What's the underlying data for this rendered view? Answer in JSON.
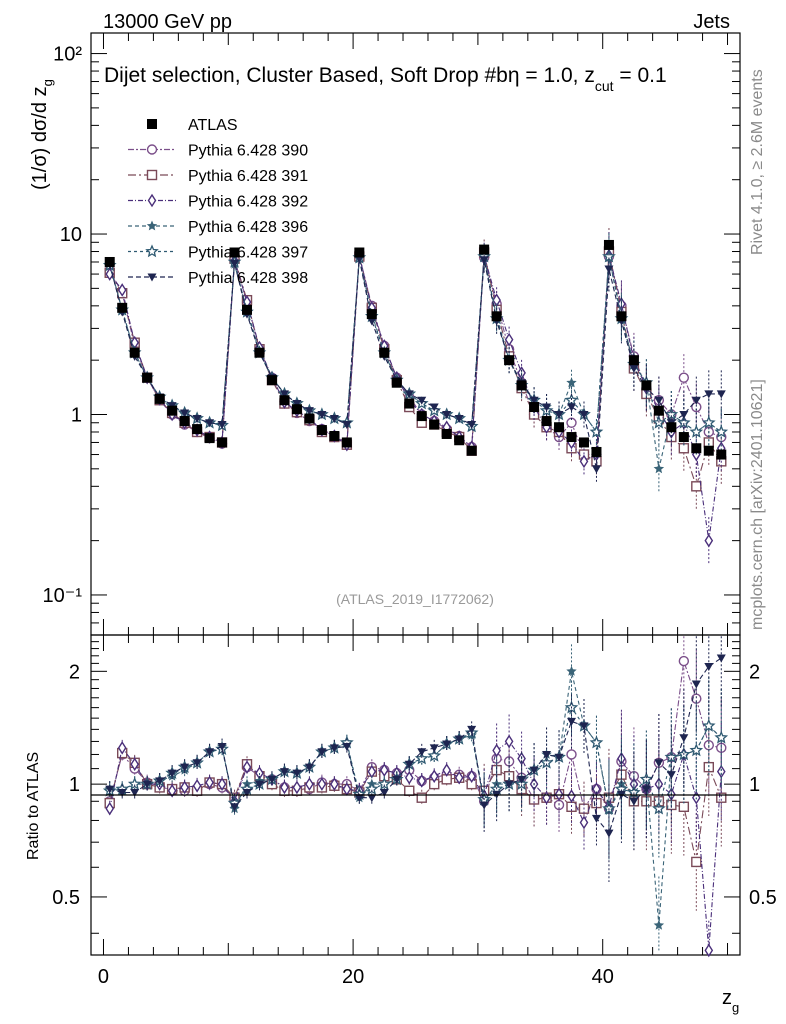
{
  "header": {
    "energy": "13000 GeV pp",
    "process": "Jets",
    "rivet_side": "Rivet 4.1.0, ≥ 2.6M events",
    "mcplots_side": "mcplots.cern.ch [arXiv:2401.10621]",
    "analysis_id": "(ATLAS_2019_I1772062)"
  },
  "chart_data": {
    "type": "scatter",
    "title": "Dijet selection, Cluster Based, Soft Drop #bη = 1.0, z",
    "title_sub": "cut",
    "title_tail": " = 0.1",
    "xlabel_main": "z",
    "xlabel_sub": "g",
    "ylabel": "(1/σ) dσ/d z",
    "ylabel_sub": "g",
    "ratio_ylabel": "Ratio to ATLAS",
    "xlim": [
      -1,
      51
    ],
    "ylim": [
      0.06,
      130
    ],
    "ratio_ylim": [
      0.35,
      2.5
    ],
    "x_ticks": [
      "0",
      "20",
      "40"
    ],
    "y_ticks": [
      "10⁻¹",
      "1",
      "10",
      "10²"
    ],
    "ratio_ticks": [
      "0.5",
      "1",
      "2"
    ],
    "x": [
      0.5,
      1.5,
      2.5,
      3.5,
      4.5,
      5.5,
      6.5,
      7.5,
      8.5,
      9.5,
      10.5,
      11.5,
      12.5,
      13.5,
      14.5,
      15.5,
      16.5,
      17.5,
      18.5,
      19.5,
      20.5,
      21.5,
      22.5,
      23.5,
      24.5,
      25.5,
      26.5,
      27.5,
      28.5,
      29.5,
      30.5,
      31.5,
      32.5,
      33.5,
      34.5,
      35.5,
      36.5,
      37.5,
      38.5,
      39.5,
      40.5,
      41.5,
      42.5,
      43.5,
      44.5,
      45.5,
      46.5,
      47.5,
      48.5,
      49.5
    ],
    "series": [
      {
        "name": "ATLAS",
        "marker": "square-filled",
        "color": "#000000",
        "dash": "",
        "values": [
          7.0,
          3.9,
          2.2,
          1.6,
          1.22,
          1.05,
          0.92,
          0.83,
          0.74,
          0.7,
          7.9,
          3.8,
          2.2,
          1.55,
          1.2,
          1.07,
          0.95,
          0.82,
          0.76,
          0.7,
          7.9,
          3.6,
          2.2,
          1.5,
          1.15,
          0.98,
          0.88,
          0.78,
          0.72,
          0.63,
          8.2,
          3.5,
          2.0,
          1.45,
          1.1,
          0.92,
          0.85,
          0.75,
          0.7,
          0.62,
          8.7,
          3.5,
          2.0,
          1.45,
          1.05,
          0.85,
          0.75,
          0.65,
          0.63,
          0.6
        ],
        "ratio": []
      },
      {
        "name": "Pythia 6.428 390",
        "marker": "circle-open",
        "color": "#7b4f8a",
        "dash": "6,2,2,2",
        "values": [
          6.3,
          4.7,
          2.4,
          1.6,
          1.2,
          1.0,
          0.88,
          0.8,
          0.74,
          0.69,
          7.2,
          4.2,
          2.3,
          1.6,
          1.18,
          1.02,
          0.92,
          0.83,
          0.76,
          0.7,
          7.6,
          4.0,
          2.4,
          1.6,
          1.25,
          1.0,
          0.92,
          0.83,
          0.76,
          0.66,
          7.4,
          4.1,
          2.3,
          1.5,
          1.0,
          0.85,
          0.75,
          0.9,
          0.6,
          0.6,
          7.5,
          4.0,
          2.1,
          1.4,
          1.2,
          1.0,
          1.6,
          1.1,
          0.8,
          0.75
        ],
        "ratio": [
          0.9,
          1.2,
          1.1,
          1.01,
          0.99,
          0.96,
          0.96,
          0.97,
          1.0,
          0.98,
          0.92,
          1.11,
          1.05,
          1.03,
          0.98,
          0.96,
          0.97,
          1.01,
          1.0,
          1.0,
          0.96,
          1.11,
          1.09,
          1.07,
          1.09,
          1.02,
          1.04,
          1.06,
          1.06,
          1.05,
          0.9,
          1.17,
          1.15,
          1.04,
          0.91,
          0.92,
          0.88,
          1.2,
          0.86,
          0.97,
          0.86,
          1.15,
          1.05,
          0.97,
          1.14,
          1.18,
          2.13,
          1.69,
          1.27,
          1.25
        ]
      },
      {
        "name": "Pythia 6.428 391",
        "marker": "square-open",
        "color": "#7a4a58",
        "dash": "8,3,2,3",
        "values": [
          6.1,
          4.7,
          2.5,
          1.6,
          1.2,
          1.02,
          0.9,
          0.8,
          0.75,
          0.7,
          7.3,
          4.3,
          2.3,
          1.55,
          1.15,
          1.03,
          0.93,
          0.8,
          0.75,
          0.68,
          7.5,
          3.9,
          2.3,
          1.55,
          1.1,
          0.9,
          0.88,
          0.8,
          0.75,
          0.63,
          7.9,
          3.8,
          2.1,
          1.4,
          1.0,
          0.85,
          0.8,
          0.65,
          0.6,
          0.55,
          8.0,
          3.7,
          1.8,
          1.3,
          0.95,
          0.75,
          0.65,
          0.4,
          0.7,
          0.55
        ],
        "ratio": [
          0.89,
          1.21,
          1.14,
          1.0,
          0.98,
          0.97,
          0.98,
          0.96,
          1.01,
          1.0,
          0.92,
          1.13,
          1.05,
          1.0,
          0.96,
          0.96,
          0.98,
          0.98,
          0.99,
          0.97,
          0.95,
          1.08,
          1.05,
          1.03,
          0.96,
          0.92,
          1.0,
          1.03,
          1.04,
          1.0,
          0.96,
          1.09,
          1.05,
          0.97,
          0.91,
          0.92,
          0.94,
          0.87,
          0.86,
          0.89,
          0.92,
          1.06,
          0.9,
          0.9,
          0.9,
          0.88,
          0.87,
          0.62,
          1.11,
          0.92
        ]
      },
      {
        "name": "Pythia 6.428 392",
        "marker": "diamond-open",
        "color": "#4a2f7a",
        "dash": "5,2,1,2",
        "values": [
          6.0,
          4.9,
          2.5,
          1.6,
          1.22,
          1.0,
          0.9,
          0.82,
          0.75,
          0.7,
          7.1,
          4.2,
          2.35,
          1.6,
          1.17,
          1.05,
          0.95,
          0.82,
          0.76,
          0.68,
          7.6,
          3.9,
          2.4,
          1.6,
          1.2,
          1.0,
          0.92,
          0.85,
          0.75,
          0.66,
          7.6,
          4.3,
          2.6,
          1.7,
          1.1,
          0.85,
          0.8,
          0.7,
          0.55,
          0.6,
          7.6,
          4.1,
          2.0,
          1.4,
          1.05,
          0.8,
          0.9,
          0.6,
          0.2,
          0.65
        ],
        "ratio": [
          0.86,
          1.25,
          1.13,
          1.0,
          1.0,
          0.96,
          0.98,
          0.99,
          1.01,
          1.0,
          0.9,
          1.11,
          1.07,
          1.03,
          0.98,
          0.98,
          1.0,
          1.0,
          1.0,
          0.97,
          0.96,
          1.08,
          1.09,
          1.07,
          1.04,
          1.02,
          1.05,
          1.09,
          1.04,
          1.05,
          0.93,
          1.23,
          1.3,
          1.17,
          1.0,
          0.92,
          0.94,
          0.93,
          0.79,
          0.97,
          0.87,
          1.17,
          1.0,
          0.97,
          1.0,
          0.94,
          1.2,
          0.92,
          0.32,
          1.08
        ]
      },
      {
        "name": "Pythia 6.428 396",
        "marker": "star-filled",
        "color": "#3a6478",
        "dash": "4,3",
        "values": [
          6.8,
          3.8,
          2.2,
          1.6,
          1.25,
          1.1,
          1.0,
          0.95,
          0.9,
          0.88,
          6.8,
          3.8,
          2.25,
          1.6,
          1.3,
          1.15,
          1.05,
          1.0,
          0.95,
          0.9,
          7.3,
          3.6,
          2.2,
          1.55,
          1.3,
          1.15,
          1.05,
          1.0,
          0.95,
          0.85,
          7.4,
          3.5,
          2.0,
          1.5,
          1.2,
          1.1,
          1.0,
          1.5,
          1.0,
          0.8,
          7.4,
          3.5,
          1.9,
          1.5,
          0.5,
          1.0,
          0.9,
          0.8,
          0.9,
          0.8
        ],
        "ratio": [
          0.97,
          0.96,
          1.0,
          1.0,
          1.02,
          1.05,
          1.09,
          1.14,
          1.22,
          1.26,
          0.86,
          1.0,
          1.02,
          1.03,
          1.08,
          1.07,
          1.11,
          1.22,
          1.25,
          1.29,
          0.92,
          1.0,
          1.0,
          1.03,
          1.13,
          1.17,
          1.19,
          1.28,
          1.32,
          1.35,
          0.9,
          1.0,
          1.0,
          1.03,
          1.09,
          1.2,
          1.18,
          2.0,
          1.43,
          1.29,
          0.85,
          1.0,
          0.95,
          1.03,
          0.42,
          1.18,
          1.2,
          1.23,
          1.43,
          1.33
        ]
      },
      {
        "name": "Pythia 6.428 397",
        "marker": "star-open",
        "color": "#2f5a72",
        "dash": "3,3",
        "values": [
          6.7,
          3.8,
          2.2,
          1.6,
          1.25,
          1.12,
          1.02,
          0.95,
          0.9,
          0.87,
          7.0,
          3.7,
          2.2,
          1.6,
          1.3,
          1.15,
          1.05,
          1.0,
          0.95,
          0.9,
          7.4,
          3.5,
          2.2,
          1.55,
          1.3,
          1.15,
          1.05,
          1.0,
          0.95,
          0.86,
          7.5,
          3.4,
          2.0,
          1.45,
          1.2,
          1.05,
          1.0,
          1.2,
          1.0,
          0.8,
          7.5,
          3.4,
          1.9,
          1.5,
          0.9,
          1.0,
          0.9,
          0.8,
          0.9,
          0.8
        ],
        "ratio": [
          0.96,
          0.97,
          1.0,
          1.0,
          1.02,
          1.07,
          1.11,
          1.14,
          1.22,
          1.24,
          0.89,
          0.97,
          1.0,
          1.03,
          1.08,
          1.07,
          1.11,
          1.22,
          1.25,
          1.29,
          0.94,
          0.97,
          1.0,
          1.03,
          1.13,
          1.17,
          1.19,
          1.28,
          1.32,
          1.37,
          0.91,
          0.97,
          1.0,
          1.0,
          1.09,
          1.14,
          1.18,
          1.6,
          1.43,
          1.29,
          0.86,
          0.97,
          0.95,
          1.03,
          0.86,
          1.18,
          1.2,
          1.23,
          1.43,
          1.33
        ]
      },
      {
        "name": "Pythia 6.428 398",
        "marker": "triangle-down-filled",
        "color": "#1e2550",
        "dash": "5,3",
        "values": [
          6.8,
          3.7,
          2.1,
          1.6,
          1.25,
          1.12,
          1.02,
          0.95,
          0.9,
          0.88,
          6.9,
          3.6,
          2.2,
          1.6,
          1.3,
          1.15,
          1.05,
          1.0,
          0.95,
          0.88,
          7.3,
          3.3,
          2.1,
          1.55,
          1.3,
          1.2,
          1.1,
          1.0,
          0.95,
          0.88,
          7.2,
          3.3,
          2.0,
          1.5,
          1.2,
          1.1,
          1.0,
          1.1,
          1.0,
          0.5,
          6.4,
          3.3,
          1.8,
          1.4,
          1.2,
          0.9,
          1.0,
          1.2,
          1.3,
          1.3
        ],
        "ratio": [
          0.97,
          0.95,
          0.95,
          1.0,
          1.02,
          1.07,
          1.11,
          1.14,
          1.22,
          1.26,
          0.87,
          0.95,
          1.0,
          1.03,
          1.08,
          1.07,
          1.11,
          1.22,
          1.25,
          1.26,
          0.92,
          0.92,
          0.95,
          1.03,
          1.13,
          1.22,
          1.25,
          1.28,
          1.32,
          1.4,
          0.88,
          0.94,
          1.0,
          1.03,
          1.09,
          1.2,
          1.18,
          1.47,
          1.43,
          0.81,
          0.74,
          0.94,
          0.9,
          0.97,
          1.14,
          1.06,
          1.33,
          1.85,
          2.06,
          2.17
        ]
      }
    ]
  }
}
